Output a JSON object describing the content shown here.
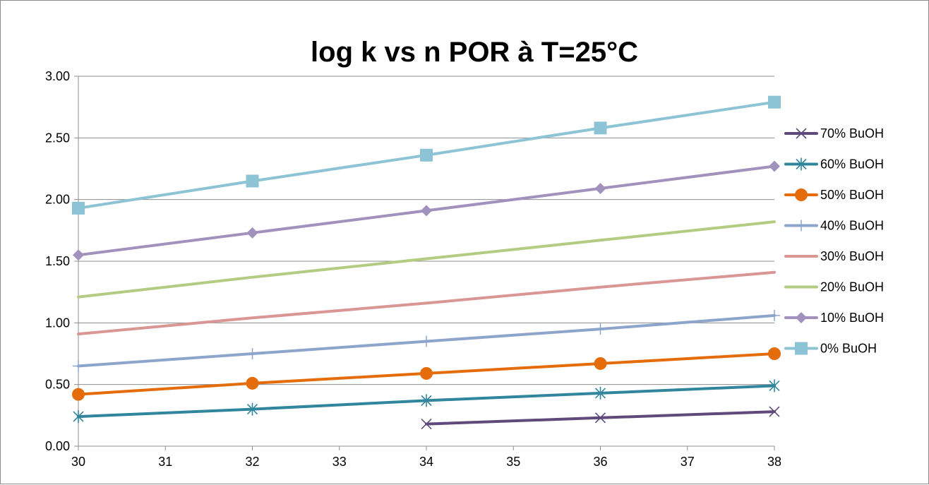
{
  "chart_data": {
    "type": "line",
    "title": "log k vs n POR à T=25°C",
    "xlabel": "",
    "ylabel": "",
    "xlim": [
      30,
      38
    ],
    "ylim": [
      0,
      3
    ],
    "x_ticks": [
      "30",
      "31",
      "32",
      "33",
      "34",
      "35",
      "36",
      "37",
      "38"
    ],
    "y_ticks": [
      "0.00",
      "0.50",
      "1.00",
      "1.50",
      "2.00",
      "2.50",
      "3.00"
    ],
    "grid": "horizontal",
    "legend_position": "right",
    "series": [
      {
        "name": "70% BuOH",
        "color": "#604A7B",
        "marker": "x",
        "x": [
          34,
          36,
          38
        ],
        "values": [
          0.18,
          0.23,
          0.28
        ]
      },
      {
        "name": "60% BuOH",
        "color": "#31859C",
        "marker": "star",
        "x": [
          30,
          32,
          34,
          36,
          38
        ],
        "values": [
          0.24,
          0.3,
          0.37,
          0.43,
          0.49
        ]
      },
      {
        "name": "50% BuOH",
        "color": "#E46C0A",
        "marker": "circle",
        "x": [
          30,
          32,
          34,
          36,
          38
        ],
        "values": [
          0.42,
          0.51,
          0.59,
          0.67,
          0.75
        ]
      },
      {
        "name": "40% BuOH",
        "color": "#8EA5CB",
        "marker": "plus",
        "x": [
          30,
          32,
          34,
          36,
          38
        ],
        "values": [
          0.65,
          0.75,
          0.85,
          0.95,
          1.06
        ]
      },
      {
        "name": "30% BuOH",
        "color": "#D99694",
        "marker": "none",
        "x": [
          30,
          32,
          34,
          36,
          38
        ],
        "values": [
          0.91,
          1.04,
          1.16,
          1.29,
          1.41
        ]
      },
      {
        "name": "20% BuOH",
        "color": "#B3CC82",
        "marker": "none",
        "x": [
          30,
          32,
          34,
          36,
          38
        ],
        "values": [
          1.21,
          1.37,
          1.52,
          1.67,
          1.82
        ]
      },
      {
        "name": "10% BuOH",
        "color": "#A391BD",
        "marker": "diamond",
        "x": [
          30,
          32,
          34,
          36,
          38
        ],
        "values": [
          1.55,
          1.73,
          1.91,
          2.09,
          2.27
        ]
      },
      {
        "name": "0% BuOH",
        "color": "#8CC3D5",
        "marker": "square",
        "x": [
          30,
          32,
          34,
          36,
          38
        ],
        "values": [
          1.93,
          2.15,
          2.36,
          2.58,
          2.79
        ]
      }
    ]
  }
}
